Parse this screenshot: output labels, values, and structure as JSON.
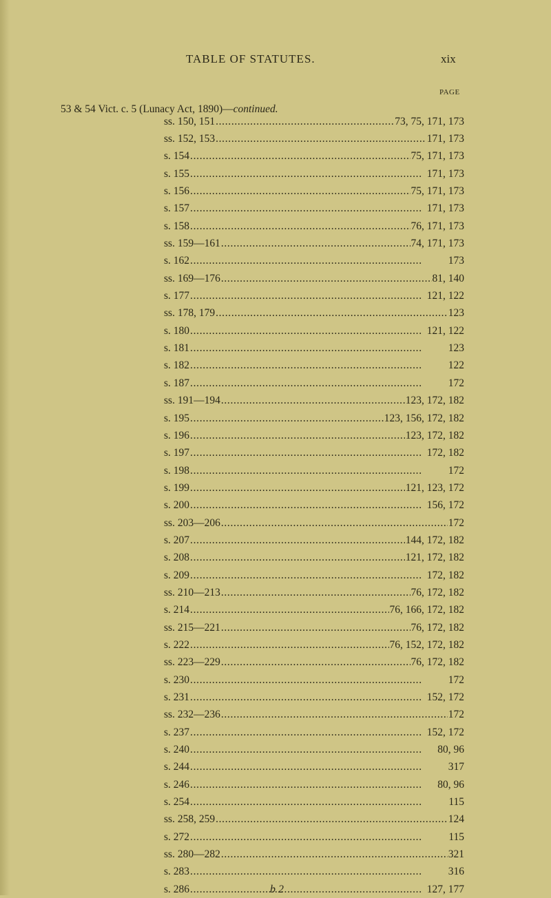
{
  "header": {
    "title": "TABLE OF STATUTES.",
    "page_number": "xix",
    "column_label": "PAGE"
  },
  "act": {
    "title": "53 & 54 Vict. c. 5 (Lunacy Act, 1890)—",
    "continued": "continued."
  },
  "entries": [
    {
      "section": "ss. 150, 151",
      "pages": "73, 75, 171, 173"
    },
    {
      "section": "ss. 152, 153",
      "pages": "171, 173"
    },
    {
      "section": "s. 154",
      "pages": "75, 171, 173"
    },
    {
      "section": "s. 155",
      "pages": "171, 173"
    },
    {
      "section": "s. 156",
      "pages": "75, 171, 173"
    },
    {
      "section": "s. 157",
      "pages": "171, 173"
    },
    {
      "section": "s. 158",
      "pages": "76, 171, 173"
    },
    {
      "section": "ss. 159—161",
      "pages": "74, 171, 173"
    },
    {
      "section": "s. 162",
      "pages": "173"
    },
    {
      "section": "ss. 169—176",
      "pages": "81, 140"
    },
    {
      "section": "s. 177",
      "pages": "121, 122"
    },
    {
      "section": "ss. 178, 179",
      "pages": "123"
    },
    {
      "section": "s. 180",
      "pages": "121, 122"
    },
    {
      "section": "s. 181",
      "pages": "123"
    },
    {
      "section": "s. 182",
      "pages": "122"
    },
    {
      "section": "s. 187",
      "pages": "172"
    },
    {
      "section": "ss. 191—194",
      "pages": "123, 172, 182"
    },
    {
      "section": "s. 195",
      "pages": "123, 156, 172, 182"
    },
    {
      "section": "s. 196",
      "pages": "123, 172, 182"
    },
    {
      "section": "s. 197",
      "pages": "172, 182"
    },
    {
      "section": "s. 198",
      "pages": "172"
    },
    {
      "section": "s. 199",
      "pages": "121, 123, 172"
    },
    {
      "section": "s. 200",
      "pages": "156, 172"
    },
    {
      "section": "ss. 203—206",
      "pages": "172"
    },
    {
      "section": "s. 207",
      "pages": "144, 172, 182"
    },
    {
      "section": "s. 208",
      "pages": "121, 172, 182"
    },
    {
      "section": "s. 209",
      "pages": "172, 182"
    },
    {
      "section": "ss. 210—213",
      "pages": "76, 172, 182"
    },
    {
      "section": "s. 214",
      "pages": "76, 166, 172, 182"
    },
    {
      "section": "ss. 215—221",
      "pages": "76, 172, 182"
    },
    {
      "section": "s. 222",
      "pages": "76, 152, 172, 182"
    },
    {
      "section": "ss. 223—229",
      "pages": "76, 172, 182"
    },
    {
      "section": "s. 230",
      "pages": "172"
    },
    {
      "section": "s. 231",
      "pages": "152, 172"
    },
    {
      "section": "ss. 232—236",
      "pages": "172"
    },
    {
      "section": "s. 237",
      "pages": "152, 172"
    },
    {
      "section": "s. 240",
      "pages": "80, 96"
    },
    {
      "section": "s. 244",
      "pages": "317"
    },
    {
      "section": "s. 246",
      "pages": "80, 96"
    },
    {
      "section": "s. 254",
      "pages": "115"
    },
    {
      "section": "ss. 258, 259",
      "pages": "124"
    },
    {
      "section": "s. 272",
      "pages": "115"
    },
    {
      "section": "ss. 280—282",
      "pages": "321"
    },
    {
      "section": "s. 283",
      "pages": "316"
    },
    {
      "section": "s. 286",
      "pages": "127, 177"
    }
  ],
  "footer": {
    "signature": "b 2"
  }
}
